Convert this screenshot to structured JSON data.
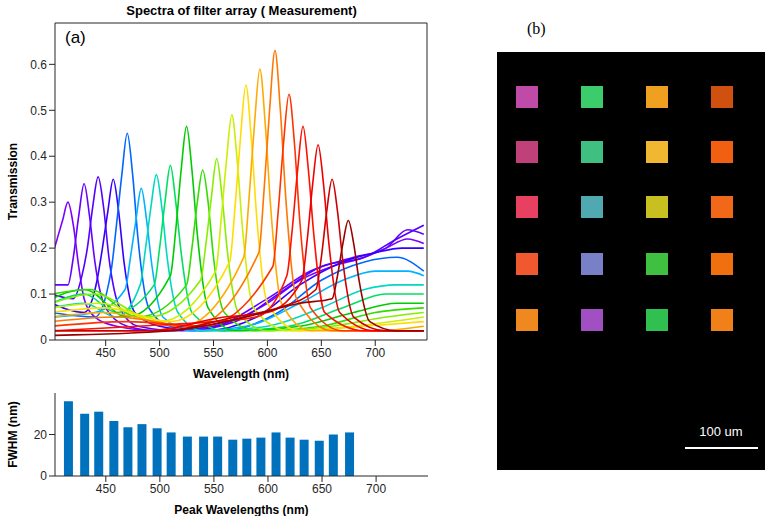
{
  "chart_data": [
    {
      "type": "line",
      "panel": "(a)",
      "title": "Spectra of filter array ( Measurement)",
      "xlabel": "Wavelength (nm)",
      "ylabel": "Transmission",
      "xlim": [
        403,
        748
      ],
      "xticks": [
        450,
        500,
        550,
        600,
        650,
        700
      ],
      "ylim": [
        0,
        0.69
      ],
      "yticks": [
        0,
        0.1,
        0.2,
        0.3,
        0.4,
        0.5,
        0.6
      ],
      "grid": false,
      "series": [
        {
          "color": "#7b00ff",
          "x": [
            400,
            405,
            410,
            415,
            420,
            425,
            430,
            440,
            460,
            500,
            550,
            600,
            630,
            660,
            690,
            710,
            730,
            745
          ],
          "values": [
            0.18,
            0.22,
            0.26,
            0.3,
            0.25,
            0.16,
            0.09,
            0.05,
            0.03,
            0.02,
            0.03,
            0.08,
            0.13,
            0.16,
            0.18,
            0.2,
            0.22,
            0.21
          ]
        },
        {
          "color": "#6600ff",
          "x": [
            400,
            415,
            420,
            425,
            430,
            435,
            440,
            450,
            470,
            500,
            550,
            600,
            640,
            680,
            710,
            730,
            745
          ],
          "values": [
            0.12,
            0.12,
            0.18,
            0.27,
            0.34,
            0.27,
            0.17,
            0.07,
            0.03,
            0.02,
            0.03,
            0.09,
            0.15,
            0.18,
            0.2,
            0.24,
            0.23
          ]
        },
        {
          "color": "#5500ff",
          "x": [
            400,
            420,
            428,
            433,
            438,
            443,
            448,
            453,
            463,
            480,
            520,
            570,
            610,
            650,
            690,
            720,
            745
          ],
          "values": [
            0.1,
            0.09,
            0.14,
            0.2,
            0.29,
            0.355,
            0.29,
            0.18,
            0.07,
            0.03,
            0.02,
            0.04,
            0.1,
            0.16,
            0.18,
            0.22,
            0.25
          ]
        },
        {
          "color": "#3300ff",
          "x": [
            400,
            430,
            442,
            447,
            452,
            457,
            462,
            467,
            477,
            500,
            540,
            590,
            630,
            670,
            700,
            725,
            745
          ],
          "values": [
            0.08,
            0.06,
            0.13,
            0.2,
            0.28,
            0.35,
            0.28,
            0.17,
            0.06,
            0.03,
            0.02,
            0.05,
            0.12,
            0.17,
            0.19,
            0.2,
            0.2
          ]
        },
        {
          "color": "#0066ff",
          "x": [
            400,
            440,
            455,
            460,
            465,
            470,
            475,
            480,
            490,
            510,
            560,
            610,
            650,
            690,
            720,
            745
          ],
          "values": [
            0.06,
            0.05,
            0.15,
            0.25,
            0.36,
            0.45,
            0.36,
            0.22,
            0.07,
            0.03,
            0.02,
            0.06,
            0.13,
            0.17,
            0.18,
            0.15
          ]
        },
        {
          "color": "#00b3ff",
          "x": [
            400,
            440,
            468,
            473,
            478,
            483,
            488,
            493,
            503,
            530,
            580,
            630,
            670,
            700,
            730,
            745
          ],
          "values": [
            0.05,
            0.06,
            0.11,
            0.18,
            0.26,
            0.33,
            0.26,
            0.16,
            0.05,
            0.02,
            0.03,
            0.08,
            0.13,
            0.15,
            0.15,
            0.14
          ]
        },
        {
          "color": "#00d9c0",
          "x": [
            400,
            430,
            460,
            482,
            487,
            492,
            497,
            502,
            507,
            517,
            540,
            600,
            650,
            690,
            720,
            745
          ],
          "values": [
            0.07,
            0.08,
            0.05,
            0.12,
            0.2,
            0.29,
            0.36,
            0.29,
            0.18,
            0.06,
            0.02,
            0.03,
            0.07,
            0.11,
            0.12,
            0.12
          ]
        },
        {
          "color": "#00e060",
          "x": [
            400,
            430,
            460,
            495,
            500,
            505,
            510,
            515,
            520,
            530,
            560,
            620,
            670,
            710,
            745
          ],
          "values": [
            0.08,
            0.1,
            0.06,
            0.12,
            0.2,
            0.3,
            0.38,
            0.3,
            0.19,
            0.06,
            0.02,
            0.03,
            0.07,
            0.1,
            0.1
          ]
        },
        {
          "color": "#00cc00",
          "x": [
            400,
            430,
            470,
            510,
            515,
            520,
            525,
            530,
            535,
            545,
            570,
            630,
            680,
            720,
            745
          ],
          "values": [
            0.09,
            0.11,
            0.05,
            0.14,
            0.24,
            0.37,
            0.465,
            0.37,
            0.23,
            0.07,
            0.02,
            0.03,
            0.06,
            0.08,
            0.08
          ]
        },
        {
          "color": "#33dd00",
          "x": [
            400,
            435,
            480,
            525,
            530,
            535,
            540,
            545,
            550,
            560,
            590,
            650,
            700,
            745
          ],
          "values": [
            0.1,
            0.11,
            0.05,
            0.12,
            0.2,
            0.3,
            0.37,
            0.3,
            0.18,
            0.06,
            0.02,
            0.03,
            0.06,
            0.07
          ]
        },
        {
          "color": "#88ee00",
          "x": [
            400,
            440,
            490,
            538,
            543,
            548,
            553,
            558,
            563,
            573,
            600,
            660,
            710,
            745
          ],
          "values": [
            0.08,
            0.1,
            0.05,
            0.13,
            0.21,
            0.31,
            0.395,
            0.31,
            0.19,
            0.06,
            0.02,
            0.03,
            0.05,
            0.06
          ]
        },
        {
          "color": "#ccee00",
          "x": [
            400,
            445,
            500,
            552,
            557,
            562,
            567,
            572,
            577,
            587,
            620,
            680,
            745
          ],
          "values": [
            0.07,
            0.08,
            0.04,
            0.15,
            0.26,
            0.39,
            0.49,
            0.39,
            0.24,
            0.07,
            0.02,
            0.03,
            0.05
          ]
        },
        {
          "color": "#ffdd00",
          "x": [
            400,
            450,
            510,
            565,
            570,
            575,
            580,
            585,
            590,
            600,
            630,
            690,
            745
          ],
          "values": [
            0.06,
            0.07,
            0.04,
            0.17,
            0.29,
            0.44,
            0.555,
            0.44,
            0.27,
            0.08,
            0.02,
            0.03,
            0.04
          ]
        },
        {
          "color": "#ffaa00",
          "x": [
            400,
            450,
            520,
            578,
            583,
            588,
            593,
            598,
            603,
            613,
            640,
            700,
            745
          ],
          "values": [
            0.05,
            0.06,
            0.03,
            0.18,
            0.31,
            0.47,
            0.59,
            0.47,
            0.29,
            0.08,
            0.02,
            0.02,
            0.03
          ]
        },
        {
          "color": "#ff7700",
          "x": [
            400,
            460,
            530,
            592,
            597,
            602,
            607,
            612,
            617,
            627,
            660,
            745
          ],
          "values": [
            0.04,
            0.05,
            0.03,
            0.19,
            0.33,
            0.5,
            0.63,
            0.5,
            0.31,
            0.09,
            0.02,
            0.02
          ]
        },
        {
          "color": "#ff3300",
          "x": [
            400,
            470,
            540,
            605,
            610,
            615,
            620,
            625,
            630,
            640,
            670,
            745
          ],
          "values": [
            0.03,
            0.04,
            0.03,
            0.16,
            0.28,
            0.43,
            0.535,
            0.43,
            0.26,
            0.07,
            0.02,
            0.02
          ]
        },
        {
          "color": "#ff1100",
          "x": [
            400,
            480,
            550,
            590,
            618,
            623,
            628,
            633,
            638,
            643,
            653,
            690,
            745
          ],
          "values": [
            0.02,
            0.03,
            0.04,
            0.05,
            0.14,
            0.24,
            0.37,
            0.465,
            0.37,
            0.23,
            0.06,
            0.02,
            0.02
          ]
        },
        {
          "color": "#ee0000",
          "x": [
            400,
            490,
            560,
            600,
            632,
            637,
            642,
            647,
            652,
            657,
            667,
            700,
            745
          ],
          "values": [
            0.02,
            0.02,
            0.05,
            0.06,
            0.13,
            0.22,
            0.34,
            0.425,
            0.34,
            0.21,
            0.06,
            0.02,
            0.02
          ]
        },
        {
          "color": "#cc0000",
          "x": [
            400,
            500,
            570,
            610,
            645,
            650,
            655,
            660,
            665,
            670,
            680,
            710,
            745
          ],
          "values": [
            0.02,
            0.02,
            0.05,
            0.07,
            0.11,
            0.18,
            0.28,
            0.35,
            0.28,
            0.17,
            0.05,
            0.02,
            0.02
          ]
        },
        {
          "color": "#990000",
          "x": [
            400,
            510,
            580,
            630,
            660,
            665,
            670,
            675,
            680,
            685,
            695,
            720,
            745
          ],
          "values": [
            0.01,
            0.02,
            0.05,
            0.08,
            0.09,
            0.14,
            0.21,
            0.26,
            0.21,
            0.13,
            0.04,
            0.02,
            0.02
          ]
        }
      ]
    },
    {
      "type": "bar",
      "xlabel": "Peak Wavelengths (nm)",
      "ylabel": "FWHM (nm)",
      "color": "#0072bd",
      "x": [
        415,
        430,
        443,
        457,
        470,
        483,
        497,
        510,
        525,
        540,
        553,
        567,
        580,
        593,
        607,
        620,
        633,
        647,
        660,
        675
      ],
      "values": [
        36,
        30,
        31,
        26.5,
        23.5,
        25,
        23,
        21,
        19,
        19,
        19,
        17.5,
        18,
        18.5,
        21,
        18.5,
        17.5,
        17,
        20,
        21
      ],
      "xlim": [
        403,
        748
      ],
      "xticks": [
        450,
        500,
        550,
        600,
        650,
        700
      ],
      "ylim": [
        0,
        40
      ],
      "yticks": [
        0,
        20
      ],
      "grid": false
    },
    {
      "type": "image",
      "panel": "(b)",
      "scale_bar": "100 um",
      "colors": [
        [
          "#c04aa8",
          "#3ccc6c",
          "#f0a020",
          "#d05010"
        ],
        [
          "#c0407a",
          "#40c080",
          "#f0b830",
          "#f06010"
        ],
        [
          "#e84060",
          "#50a8b0",
          "#c8c020",
          "#f06818"
        ],
        [
          "#f05830",
          "#7880c8",
          "#40c040",
          "#f07010"
        ],
        [
          "#f08820",
          "#a050c0",
          "#30c050",
          "#f08018"
        ]
      ]
    }
  ]
}
